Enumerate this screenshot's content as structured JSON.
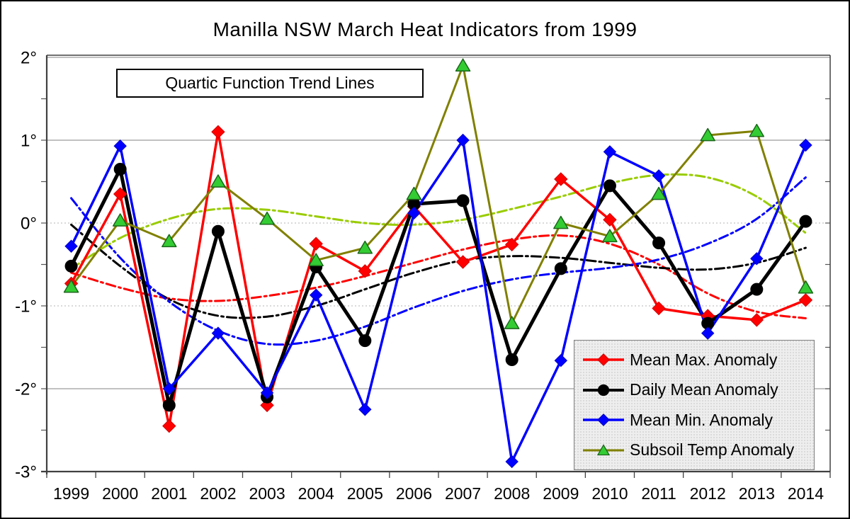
{
  "title": "Manilla NSW March Heat Indicators from 1999",
  "annotation": "Quartic Function Trend Lines",
  "y_axis": {
    "tick_labels": [
      "2°",
      "1°",
      "0°",
      "-1°",
      "-2°",
      "-3°"
    ],
    "tick_values": [
      2,
      1,
      0,
      -1,
      -2,
      -3
    ]
  },
  "chart_data": {
    "type": "line",
    "title": "Manilla NSW March Heat Indicators from 1999",
    "annotation": "Quartic Function Trend Lines",
    "categories": [
      1999,
      2000,
      2001,
      2002,
      2003,
      2004,
      2005,
      2006,
      2007,
      2008,
      2009,
      2010,
      2011,
      2012,
      2013,
      2014
    ],
    "ylim": [
      -3,
      2
    ],
    "y_unit": "degrees C anomaly",
    "grid": "horizontal integer gridlines",
    "legend_position": "inside bottom-right",
    "trend_note": "Each series has a quartic-function trend line drawn dash-dot",
    "series": [
      {
        "name": "Mean Max. Anomaly",
        "color": "#ff0000",
        "line_width": 3.5,
        "marker": "diamond",
        "marker_fill": "#ff0000",
        "marker_stroke": "#d40000",
        "marker_size": 9,
        "values": [
          -0.73,
          0.35,
          -2.45,
          1.1,
          -2.2,
          -0.25,
          -0.58,
          0.2,
          -0.47,
          -0.26,
          0.53,
          0.04,
          -1.03,
          -1.12,
          -1.17,
          -0.93
        ],
        "trend_color": "#ff0000",
        "trend_values": [
          -0.6,
          -0.78,
          -0.91,
          -0.94,
          -0.88,
          -0.78,
          -0.64,
          -0.48,
          -0.32,
          -0.2,
          -0.15,
          -0.25,
          -0.5,
          -0.85,
          -1.07,
          -1.15
        ]
      },
      {
        "name": "Daily Mean Anomaly",
        "color": "#000000",
        "line_width": 5,
        "marker": "circle",
        "marker_fill": "#000000",
        "marker_stroke": "#000000",
        "marker_size": 8.5,
        "values": [
          -0.52,
          0.65,
          -2.2,
          -0.1,
          -2.1,
          -0.53,
          -1.42,
          0.23,
          0.27,
          -1.65,
          -0.55,
          0.45,
          -0.24,
          -1.21,
          -0.8,
          0.02
        ],
        "trend_color": "#000000",
        "trend_values": [
          -0.02,
          -0.52,
          -0.92,
          -1.12,
          -1.13,
          -1.0,
          -0.8,
          -0.6,
          -0.45,
          -0.4,
          -0.42,
          -0.48,
          -0.54,
          -0.56,
          -0.48,
          -0.3
        ]
      },
      {
        "name": "Mean Min. Anomaly",
        "color": "#0000ff",
        "line_width": 3.5,
        "marker": "diamond",
        "marker_fill": "#0000ff",
        "marker_stroke": "#0000cc",
        "marker_size": 8.5,
        "values": [
          -0.28,
          0.93,
          -2.0,
          -1.33,
          -2.05,
          -0.87,
          -2.25,
          0.12,
          1.0,
          -2.88,
          -1.66,
          0.86,
          0.57,
          -1.33,
          -0.43,
          0.94
        ],
        "trend_color": "#0000ff",
        "trend_values": [
          0.3,
          -0.42,
          -0.95,
          -1.3,
          -1.46,
          -1.42,
          -1.25,
          -1.02,
          -0.82,
          -0.68,
          -0.6,
          -0.54,
          -0.44,
          -0.25,
          0.05,
          0.55
        ]
      },
      {
        "name": "Subsoil Temp Anomaly",
        "color": "#808000",
        "line_width": 3,
        "marker": "triangle",
        "marker_fill": "#33cc33",
        "marker_stroke": "#1a661a",
        "marker_size": 9.5,
        "values": [
          -0.77,
          0.03,
          -0.22,
          0.5,
          0.05,
          -0.45,
          -0.3,
          0.35,
          1.9,
          -1.21,
          0.0,
          -0.16,
          0.35,
          1.06,
          1.11,
          -0.78
        ],
        "trend_color": "#99cc00",
        "trend_values": [
          -0.55,
          -0.18,
          0.05,
          0.17,
          0.16,
          0.08,
          0.0,
          -0.02,
          0.04,
          0.17,
          0.32,
          0.48,
          0.58,
          0.55,
          0.32,
          -0.12
        ]
      }
    ]
  }
}
